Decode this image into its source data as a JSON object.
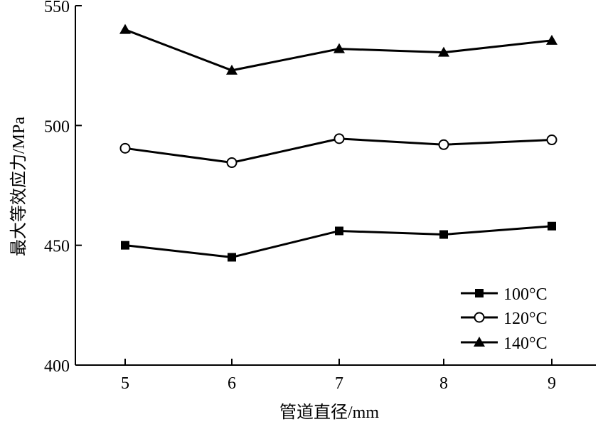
{
  "chart_data": {
    "type": "line",
    "x": [
      5,
      6,
      7,
      8,
      9
    ],
    "xlabel": "管道直径/mm",
    "ylabel": "最大等效应力/MPa",
    "ylim": [
      400,
      550
    ],
    "yticks": [
      400,
      450,
      500,
      550
    ],
    "xticks": [
      5,
      6,
      7,
      8,
      9
    ],
    "legend_position": "bottom-right",
    "grid": false,
    "series": [
      {
        "name": "100°C",
        "marker": "square",
        "values": [
          450,
          445,
          456,
          454.5,
          458
        ]
      },
      {
        "name": "120°C",
        "marker": "circle-open",
        "values": [
          490.5,
          484.5,
          494.5,
          492,
          494
        ]
      },
      {
        "name": "140°C",
        "marker": "triangle",
        "values": [
          540,
          523,
          532,
          530.5,
          535.5
        ]
      }
    ],
    "colors": {
      "line": "#000000",
      "background": "#ffffff"
    }
  }
}
